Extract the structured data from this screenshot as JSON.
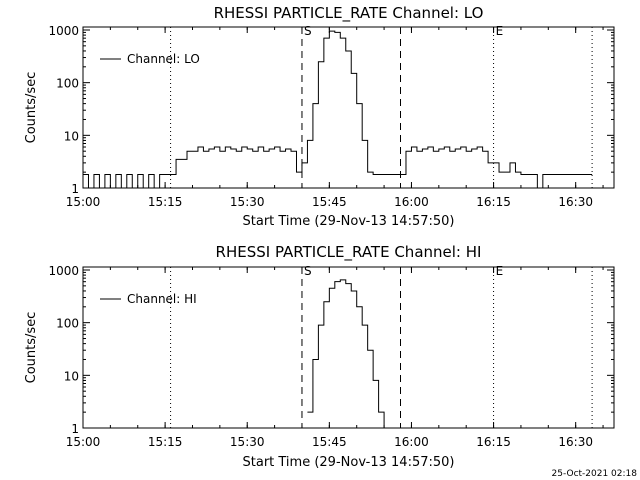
{
  "footer_timestamp": "25-Oct-2021 02:18",
  "colors": {
    "background": "#ffffff",
    "foreground": "#000000"
  },
  "chart_data": [
    {
      "type": "line",
      "title": "RHESSI PARTICLE_RATE Channel: LO",
      "xlabel": "Start Time (29-Nov-13 14:57:50)",
      "ylabel": "Counts/sec",
      "legend": {
        "label": "Channel: LO",
        "placement": "top-left"
      },
      "yscale": "log",
      "ylim": [
        1,
        1000
      ],
      "xlim": [
        "15:00",
        "16:37"
      ],
      "ytick_labels": [
        "1",
        "10",
        "100",
        "1000"
      ],
      "xtick_labels": [
        "15:00",
        "15:15",
        "15:30",
        "15:45",
        "16:00",
        "16:15",
        "16:30"
      ],
      "markers": [
        {
          "label": "S",
          "time": "15:40",
          "style": "dashed"
        },
        {
          "label": "",
          "time": "15:58",
          "style": "dashed"
        },
        {
          "label": "",
          "time": "15:16",
          "style": "dotted"
        },
        {
          "label": "E",
          "time": "16:15",
          "style": "dotted"
        },
        {
          "label": "",
          "time": "16:33",
          "style": "dotted"
        }
      ],
      "series": [
        {
          "name": "Channel: LO",
          "x": [
            "15:00",
            "15:01",
            "15:02",
            "15:03",
            "15:04",
            "15:05",
            "15:06",
            "15:07",
            "15:08",
            "15:09",
            "15:10",
            "15:11",
            "15:12",
            "15:13",
            "15:14",
            "15:15",
            "15:16",
            "15:17",
            "15:18",
            "15:19",
            "15:20",
            "15:21",
            "15:22",
            "15:23",
            "15:24",
            "15:25",
            "15:26",
            "15:27",
            "15:28",
            "15:29",
            "15:30",
            "15:31",
            "15:32",
            "15:33",
            "15:34",
            "15:35",
            "15:36",
            "15:37",
            "15:38",
            "15:39",
            "15:40",
            "15:41",
            "15:42",
            "15:43",
            "15:44",
            "15:45",
            "15:46",
            "15:47",
            "15:48",
            "15:49",
            "15:50",
            "15:51",
            "15:52",
            "15:53",
            "15:54",
            "15:55",
            "15:56",
            "15:57",
            "15:58",
            "15:59",
            "16:00",
            "16:01",
            "16:02",
            "16:03",
            "16:04",
            "16:05",
            "16:06",
            "16:07",
            "16:08",
            "16:09",
            "16:10",
            "16:11",
            "16:12",
            "16:13",
            "16:14",
            "16:15",
            "16:16",
            "16:17",
            "16:18",
            "16:19",
            "16:20",
            "16:21",
            "16:22",
            "16:23",
            "16:24",
            "16:25",
            "16:26",
            "16:27",
            "16:28",
            "16:29",
            "16:30",
            "16:31",
            "16:32",
            "16:33"
          ],
          "y": [
            1.8,
            1,
            1.8,
            1,
            1.8,
            1,
            1.8,
            1,
            1.8,
            1,
            1.8,
            1,
            1.8,
            1,
            1.8,
            1.8,
            1.8,
            3.5,
            3.5,
            5,
            5,
            6,
            5,
            5.5,
            6,
            5,
            6,
            5.5,
            5,
            6,
            5.5,
            5,
            6,
            5,
            5.5,
            6,
            5,
            5.5,
            5,
            2,
            3,
            8,
            40,
            250,
            700,
            950,
            900,
            700,
            400,
            150,
            40,
            8,
            2,
            1.8,
            1.8,
            1.8,
            1.8,
            1.8,
            1.8,
            5,
            6,
            5,
            5.5,
            6,
            5,
            5.5,
            6,
            5,
            5.5,
            6,
            5,
            5.5,
            6,
            5,
            3,
            3,
            2,
            2,
            3,
            2,
            1.8,
            1.8,
            1.8,
            1,
            1.8,
            1.8,
            1.8,
            1.8,
            1.8,
            1.8,
            1.8,
            1.8,
            1.8,
            1.8
          ]
        }
      ]
    },
    {
      "type": "line",
      "title": "RHESSI PARTICLE_RATE Channel: HI",
      "xlabel": "Start Time (29-Nov-13 14:57:50)",
      "ylabel": "Counts/sec",
      "legend": {
        "label": "Channel: HI",
        "placement": "top-left"
      },
      "yscale": "log",
      "ylim": [
        1,
        1000
      ],
      "xlim": [
        "15:00",
        "16:37"
      ],
      "ytick_labels": [
        "1",
        "10",
        "100",
        "1000"
      ],
      "xtick_labels": [
        "15:00",
        "15:15",
        "15:30",
        "15:45",
        "16:00",
        "16:15",
        "16:30"
      ],
      "markers": [
        {
          "label": "S",
          "time": "15:40",
          "style": "dashed"
        },
        {
          "label": "",
          "time": "15:58",
          "style": "dashed"
        },
        {
          "label": "",
          "time": "15:16",
          "style": "dotted"
        },
        {
          "label": "E",
          "time": "16:15",
          "style": "dotted"
        },
        {
          "label": "",
          "time": "16:33",
          "style": "dotted"
        }
      ],
      "series": [
        {
          "name": "Channel: HI",
          "x": [
            "15:41",
            "15:42",
            "15:43",
            "15:44",
            "15:45",
            "15:46",
            "15:47",
            "15:48",
            "15:49",
            "15:50",
            "15:51",
            "15:52",
            "15:53",
            "15:54",
            "15:55"
          ],
          "y": [
            2,
            20,
            90,
            250,
            450,
            600,
            650,
            550,
            400,
            200,
            90,
            30,
            8,
            2,
            1
          ]
        }
      ]
    }
  ]
}
